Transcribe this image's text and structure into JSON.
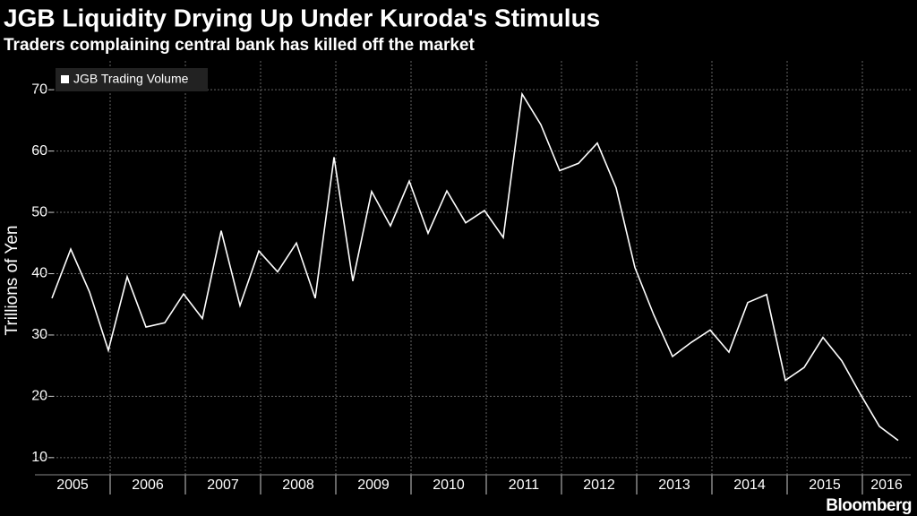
{
  "chart_data": {
    "type": "line",
    "title": "JGB Liquidity Drying Up Under Kuroda's Stimulus",
    "subtitle": "Traders complaining central bank has killed off the market",
    "y_label": "Trillions of Yen",
    "source": "Bloomberg",
    "categories": [
      "2005",
      null,
      null,
      null,
      "2006",
      null,
      null,
      null,
      "2007",
      null,
      null,
      null,
      "2008",
      null,
      null,
      null,
      "2009",
      null,
      null,
      null,
      "2010",
      null,
      null,
      null,
      "2011",
      null,
      null,
      null,
      "2012",
      null,
      null,
      null,
      "2013",
      null,
      null,
      null,
      "2014",
      null,
      null,
      null,
      "2015",
      null,
      null,
      null,
      "2016",
      null
    ],
    "series": [
      {
        "name": "JGB Trading Volume",
        "color": "#ffffff",
        "values": [
          36,
          44,
          37,
          27.5,
          39.5,
          31.3,
          32,
          36.7,
          32.7,
          47,
          34.8,
          43.7,
          40.3,
          45,
          36,
          59,
          38.8,
          53.4,
          47.8,
          55.1,
          46.6,
          53.5,
          48.3,
          50.3,
          45.9,
          69.3,
          64.3,
          56.8,
          58,
          61.3,
          54,
          41,
          33.3,
          26.5,
          28.8,
          30.8,
          27.2,
          35.3,
          36.6,
          22.6,
          24.7,
          29.6,
          25.8,
          20.3,
          15.1,
          12.8
        ]
      }
    ],
    "ylim": [
      7.2,
      74.7
    ],
    "yticks": [
      10,
      20,
      30,
      40,
      50,
      60,
      70
    ],
    "grid": true,
    "legend": "top-left"
  }
}
